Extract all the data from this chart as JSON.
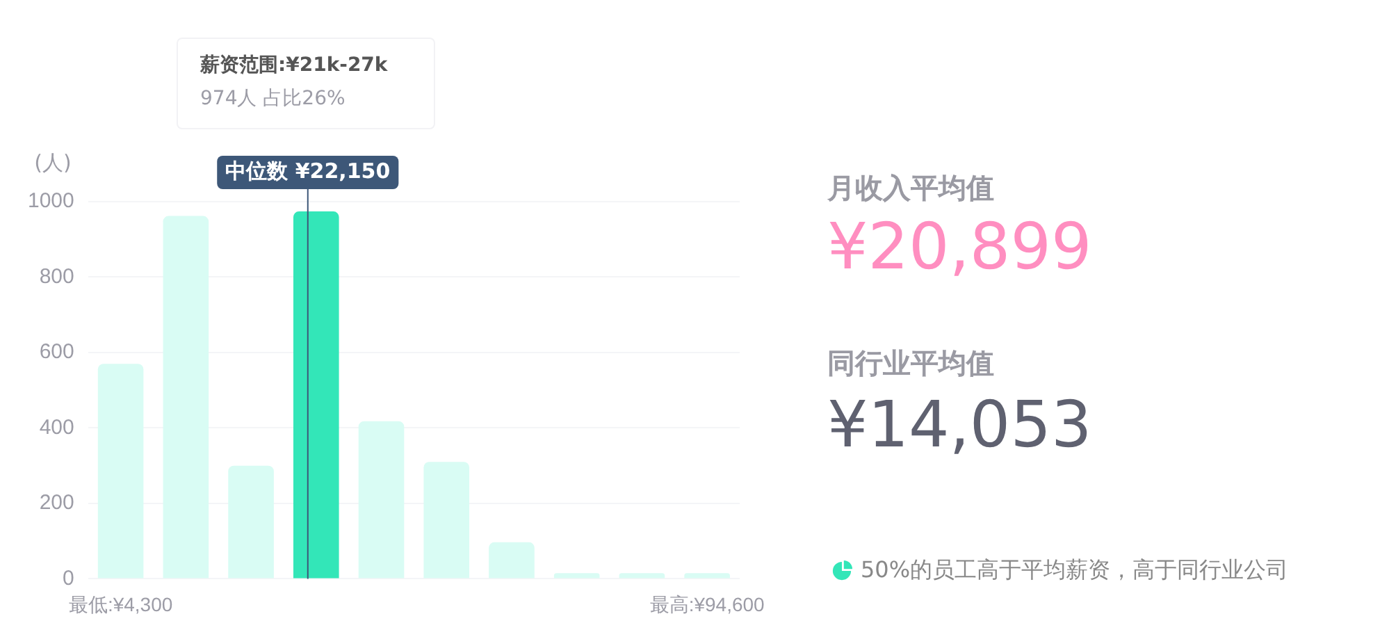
{
  "chart_data": [
    {
      "type": "bar",
      "ylabel": "(人)",
      "categories": [
        "最低:¥4,300",
        null,
        null,
        null,
        null,
        null,
        null,
        null,
        null,
        "最高:¥94,600"
      ],
      "values": [
        570,
        962,
        300,
        974,
        418,
        310,
        97,
        15,
        15,
        15
      ],
      "colors": [
        "#d9fcf4",
        "#d9fcf4",
        "#d9fcf4",
        "#33e6b8",
        "#d9fcf4",
        "#d9fcf4",
        "#d9fcf4",
        "#d9fcf4",
        "#d9fcf4",
        "#d9fcf4"
      ],
      "ylim": [
        0,
        1000
      ],
      "yticks": [
        0,
        200,
        400,
        600,
        800,
        1000
      ],
      "grid": "y",
      "legend": false,
      "annotations": [
        "薪资范围:¥21k-27k",
        "974人  占比26%",
        "中位数 ¥22,150"
      ]
    },
    {
      "type": "other",
      "annotations": [
        "月收入平均值",
        "¥20,899",
        "同行业平均值",
        "¥14,053",
        "50%的员工高于平均薪资，高于同行业公司"
      ]
    }
  ]
}
